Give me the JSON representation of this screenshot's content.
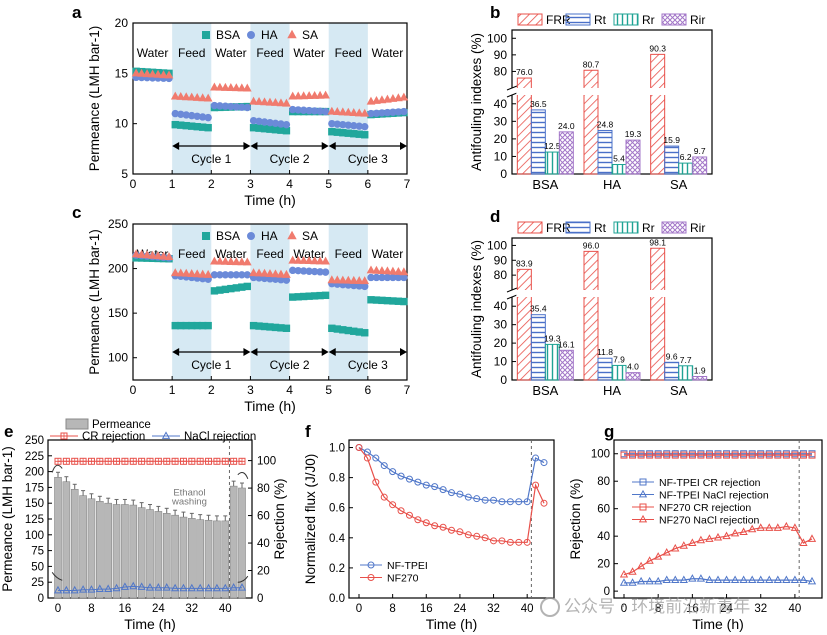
{
  "chart_data": [
    {
      "panel": "a",
      "type": "scatter",
      "xlabel": "Time (h)",
      "ylabel": "Permeance (LMH bar-1)",
      "xlim": [
        0,
        7
      ],
      "ylim": [
        5,
        20
      ],
      "xticks": [
        "0",
        "1",
        "2",
        "3",
        "4",
        "5",
        "6",
        "7"
      ],
      "yticks": [
        "5",
        "10",
        "15",
        "20"
      ],
      "phases": [
        "Water",
        "Feed",
        "Water",
        "Feed",
        "Water",
        "Feed",
        "Water"
      ],
      "cycles": [
        "Cycle 1",
        "Cycle 2",
        "Cycle 3"
      ],
      "series": [
        {
          "name": "BSA",
          "color": "#21a79c",
          "marker": "square",
          "segments": [
            [
              0,
              1,
              15.2,
              15.0
            ],
            [
              1,
              2,
              9.9,
              9.6
            ],
            [
              2,
              3,
              11.6,
              11.7
            ],
            [
              3,
              4,
              9.6,
              9.3
            ],
            [
              4,
              5,
              11.2,
              11.2
            ],
            [
              5,
              6,
              9.2,
              8.9
            ],
            [
              6,
              7,
              10.9,
              11.1
            ]
          ]
        },
        {
          "name": "HA",
          "color": "#6b8ad8",
          "marker": "circle",
          "segments": [
            [
              0,
              1,
              14.6,
              14.5
            ],
            [
              1,
              2,
              11.0,
              10.6
            ],
            [
              2,
              3,
              11.8,
              11.6
            ],
            [
              3,
              4,
              10.3,
              9.9
            ],
            [
              4,
              5,
              11.4,
              11.2
            ],
            [
              5,
              6,
              10.0,
              9.7
            ],
            [
              6,
              7,
              11.0,
              11.2
            ]
          ]
        },
        {
          "name": "SA",
          "color": "#f07b6e",
          "marker": "triangle",
          "segments": [
            [
              0,
              1,
              15.0,
              14.8
            ],
            [
              1,
              2,
              12.7,
              12.5
            ],
            [
              2,
              3,
              13.6,
              13.5
            ],
            [
              3,
              4,
              12.2,
              12.0
            ],
            [
              4,
              5,
              12.7,
              12.8
            ],
            [
              5,
              6,
              11.2,
              11.0
            ],
            [
              6,
              7,
              12.2,
              12.6
            ]
          ]
        }
      ]
    },
    {
      "panel": "b",
      "type": "bar",
      "ylabel": "Antifouling indexes (%)",
      "categories": [
        "BSA",
        "HA",
        "SA"
      ],
      "yticks": [
        "0",
        "10",
        "20",
        "30",
        "40",
        "80",
        "90",
        "100"
      ],
      "series": [
        {
          "name": "FRR",
          "color": "#e8504a",
          "values": [
            76.0,
            80.7,
            90.3
          ]
        },
        {
          "name": "Rt",
          "color": "#4a70c8",
          "values": [
            36.5,
            24.8,
            15.9
          ]
        },
        {
          "name": "Rr",
          "color": "#1fa394",
          "values": [
            12.5,
            5.4,
            6.2
          ]
        },
        {
          "name": "Rir",
          "color": "#a377c8",
          "values": [
            24.0,
            19.3,
            9.7
          ]
        }
      ]
    },
    {
      "panel": "c",
      "type": "scatter",
      "xlabel": "Time (h)",
      "ylabel": "Permeance (LMH bar-1)",
      "xlim": [
        0,
        7
      ],
      "ylim": [
        75,
        250
      ],
      "xticks": [
        "0",
        "1",
        "2",
        "3",
        "4",
        "5",
        "6",
        "7"
      ],
      "yticks": [
        "100",
        "150",
        "200",
        "250"
      ],
      "phases": [
        "Water",
        "Feed",
        "Water",
        "Feed",
        "Water",
        "Feed",
        "Water"
      ],
      "cycles": [
        "Cycle 1",
        "Cycle 2",
        "Cycle 3"
      ],
      "series": [
        {
          "name": "BSA",
          "color": "#21a79c",
          "marker": "square",
          "segments": [
            [
              0,
              1,
              212,
              211
            ],
            [
              1,
              2,
              136,
              136
            ],
            [
              2,
              3,
              175,
              180
            ],
            [
              3,
              4,
              136,
              133
            ],
            [
              4,
              5,
              168,
              170
            ],
            [
              5,
              6,
              133,
              128
            ],
            [
              6,
              7,
              165,
              163
            ]
          ]
        },
        {
          "name": "HA",
          "color": "#6b8ad8",
          "marker": "circle",
          "segments": [
            [
              0,
              1,
              215,
              212
            ],
            [
              1,
              2,
              192,
              188
            ],
            [
              2,
              3,
              193,
              193
            ],
            [
              3,
              4,
              190,
              187
            ],
            [
              4,
              5,
              198,
              196
            ],
            [
              5,
              6,
              183,
              180
            ],
            [
              6,
              7,
              190,
              190
            ]
          ]
        },
        {
          "name": "SA",
          "color": "#f07b6e",
          "marker": "triangle",
          "segments": [
            [
              0,
              1,
              216,
              213
            ],
            [
              1,
              2,
              195,
              193
            ],
            [
              2,
              3,
              208,
              207
            ],
            [
              3,
              4,
              195,
              193
            ],
            [
              4,
              5,
              209,
              208
            ],
            [
              5,
              6,
              187,
              186
            ],
            [
              6,
              7,
              198,
              196
            ]
          ]
        }
      ]
    },
    {
      "panel": "d",
      "type": "bar",
      "ylabel": "Antifouling indexes (%)",
      "categories": [
        "BSA",
        "HA",
        "SA"
      ],
      "yticks": [
        "0",
        "10",
        "20",
        "30",
        "40",
        "80",
        "90",
        "100"
      ],
      "series": [
        {
          "name": "FRR",
          "color": "#e8504a",
          "values": [
            83.9,
            96.0,
            98.1
          ]
        },
        {
          "name": "Rt",
          "color": "#4a70c8",
          "values": [
            35.4,
            11.8,
            9.6
          ]
        },
        {
          "name": "Rr",
          "color": "#1fa394",
          "values": [
            19.3,
            7.9,
            7.7
          ]
        },
        {
          "name": "Rir",
          "color": "#a377c8",
          "values": [
            16.1,
            4.0,
            1.9
          ]
        }
      ]
    },
    {
      "panel": "e",
      "type": "bar",
      "xlabel": "Time (h)",
      "ylabel": "Permeance (LMH bar-1)",
      "ylabel2": "Rejection (%)",
      "xticks": [
        "0",
        "8",
        "16",
        "24",
        "32",
        "40"
      ],
      "yticks": [
        "0",
        "25",
        "50",
        "75",
        "100",
        "125",
        "150",
        "175",
        "200",
        "225",
        "250"
      ],
      "yticks2": [
        "0",
        "20",
        "40",
        "60",
        "80",
        "100"
      ],
      "annotation": "Ethanol washing",
      "legend": [
        "Permeance",
        "CR rejection",
        "NaCl rejection"
      ],
      "x": [
        0,
        2,
        4,
        6,
        8,
        10,
        12,
        14,
        16,
        18,
        20,
        22,
        24,
        26,
        28,
        30,
        32,
        34,
        36,
        38,
        40,
        42,
        44
      ],
      "permeance": [
        191,
        184,
        172,
        162,
        157,
        153,
        150,
        148,
        148,
        147,
        143,
        140,
        137,
        134,
        131,
        128,
        126,
        124,
        123,
        122,
        122,
        177,
        174
      ],
      "cr_rejection": [
        99.5,
        99.5,
        99.5,
        99.5,
        99.5,
        99.5,
        99.5,
        99.5,
        99.5,
        99.5,
        99.5,
        99.5,
        99.5,
        99.5,
        99.5,
        99.5,
        99.5,
        99.5,
        99.5,
        99.5,
        99.5,
        99.5,
        99.5
      ],
      "nacl_rejection": [
        5.5,
        5.5,
        5.5,
        6,
        6,
        6.5,
        6.5,
        7,
        8,
        8.5,
        8,
        7.5,
        7.5,
        7.5,
        7,
        7,
        7,
        7,
        7,
        7,
        7,
        7.5,
        7.5
      ]
    },
    {
      "panel": "f",
      "type": "line",
      "xlabel": "Time (h)",
      "ylabel": "Normalized flux (J/J0)",
      "xticks": [
        "0",
        "8",
        "16",
        "24",
        "32",
        "40"
      ],
      "yticks": [
        "0.0",
        "0.2",
        "0.4",
        "0.6",
        "0.8",
        "1.0"
      ],
      "legend": [
        "NF-TPEI",
        "NF270"
      ],
      "x": [
        0,
        2,
        4,
        6,
        8,
        10,
        12,
        14,
        16,
        18,
        20,
        22,
        24,
        26,
        28,
        30,
        32,
        34,
        36,
        38,
        40,
        42,
        44
      ],
      "series": [
        {
          "name": "NF-TPEI",
          "color": "#5077c9",
          "values": [
            1.0,
            0.97,
            0.93,
            0.88,
            0.84,
            0.81,
            0.79,
            0.77,
            0.75,
            0.74,
            0.72,
            0.7,
            0.69,
            0.67,
            0.66,
            0.65,
            0.65,
            0.64,
            0.64,
            0.64,
            0.64,
            0.93,
            0.9
          ]
        },
        {
          "name": "NF270",
          "color": "#e8504a",
          "values": [
            1.0,
            0.93,
            0.77,
            0.67,
            0.62,
            0.58,
            0.55,
            0.52,
            0.5,
            0.48,
            0.47,
            0.45,
            0.44,
            0.42,
            0.41,
            0.4,
            0.38,
            0.38,
            0.37,
            0.37,
            0.37,
            0.75,
            0.63
          ]
        }
      ]
    },
    {
      "panel": "g",
      "type": "line",
      "xlabel": "Time (h)",
      "ylabel": "Rejection (%)",
      "xticks": [
        "0",
        "8",
        "16",
        "24",
        "32",
        "40"
      ],
      "yticks": [
        "0",
        "20",
        "40",
        "60",
        "80",
        "100"
      ],
      "legend": [
        "NF-TPEI CR rejection",
        "NF-TPEI NaCl rejection",
        "NF270 CR rejection",
        "NF270 NaCl rejection"
      ],
      "x": [
        0,
        2,
        4,
        6,
        8,
        10,
        12,
        14,
        16,
        18,
        20,
        22,
        24,
        26,
        28,
        30,
        32,
        34,
        36,
        38,
        40,
        42,
        44
      ],
      "series": [
        {
          "name": "NF-TPEI CR rejection",
          "color": "#5077c9",
          "values": [
            100,
            100,
            100,
            100,
            100,
            100,
            100,
            100,
            100,
            100,
            100,
            100,
            100,
            100,
            100,
            100,
            100,
            100,
            100,
            100,
            100,
            100,
            100
          ]
        },
        {
          "name": "NF-TPEI NaCl rejection",
          "color": "#5077c9",
          "values": [
            6,
            6,
            7,
            7,
            7,
            8,
            8,
            8,
            9,
            9,
            8,
            8,
            8,
            8,
            8,
            8,
            8,
            8,
            8,
            8,
            8,
            8,
            7
          ]
        },
        {
          "name": "NF270 CR rejection",
          "color": "#e8504a",
          "values": [
            99,
            99,
            99,
            99,
            99,
            99,
            99,
            99,
            99,
            99,
            99,
            99,
            99,
            99,
            99,
            99,
            99,
            99,
            99,
            99,
            99,
            99,
            99
          ]
        },
        {
          "name": "NF270 NaCl rejection",
          "color": "#e8504a",
          "values": [
            12,
            14,
            18,
            22,
            25,
            28,
            31,
            33,
            35,
            37,
            38,
            39,
            40,
            42,
            43,
            45,
            46,
            46,
            46,
            47,
            46,
            35,
            38
          ]
        }
      ]
    }
  ],
  "watermark": "公众号 · 环境前沿新青年"
}
